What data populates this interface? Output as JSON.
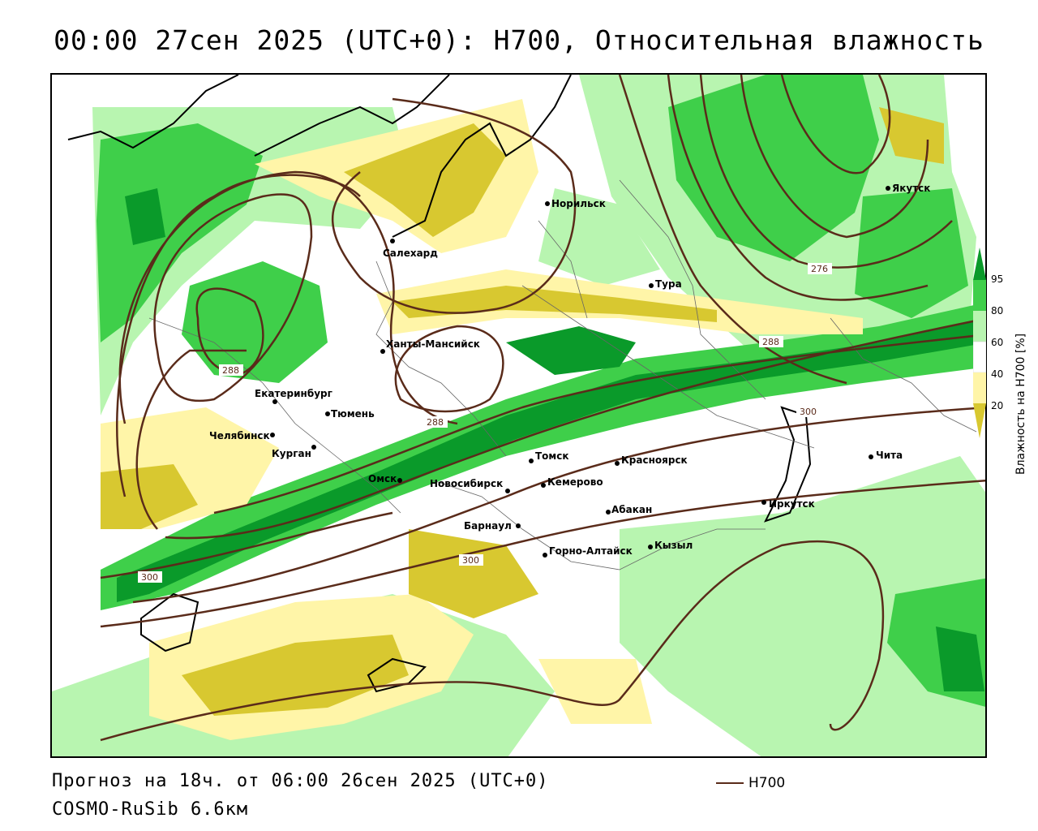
{
  "title": "00:00 27сен 2025 (UTC+0): H700, Относительная влажность",
  "footer": {
    "forecast": "Прогноз на 18ч. от 06:00 26сен 2025 (UTC+0)",
    "model": "COSMO-RuSib 6.6км"
  },
  "legend": {
    "line_label": "H700",
    "line_color": "#5a2b1a"
  },
  "colorbar": {
    "title": "Влажность на H700 [%]",
    "ticks": [
      "95",
      "80",
      "60",
      "40",
      "20"
    ],
    "colors": {
      "very_wet": "#0a9a2a",
      "wet": "#3fcf4a",
      "moist": "#b8f5b0",
      "neutral": "#ffffff",
      "dry": "#fff5a8",
      "very_dry": "#d8c830"
    }
  },
  "cities": [
    {
      "name": "Норильск"
    },
    {
      "name": "Якутск"
    },
    {
      "name": "Салехард"
    },
    {
      "name": "Тура"
    },
    {
      "name": "Ханты-Мансийск"
    },
    {
      "name": "Екатеринбург"
    },
    {
      "name": "Тюмень"
    },
    {
      "name": "Челябинск"
    },
    {
      "name": "Курган"
    },
    {
      "name": "Омск"
    },
    {
      "name": "Томск"
    },
    {
      "name": "Новосибирск"
    },
    {
      "name": "Кемерово"
    },
    {
      "name": "Красноярск"
    },
    {
      "name": "Чита"
    },
    {
      "name": "Иркутск"
    },
    {
      "name": "Абакан"
    },
    {
      "name": "Барнаул"
    },
    {
      "name": "Горно-Алтайск"
    },
    {
      "name": "Кызыл"
    }
  ],
  "contour_labels": [
    "276",
    "288",
    "288",
    "288",
    "300",
    "300",
    "300"
  ]
}
